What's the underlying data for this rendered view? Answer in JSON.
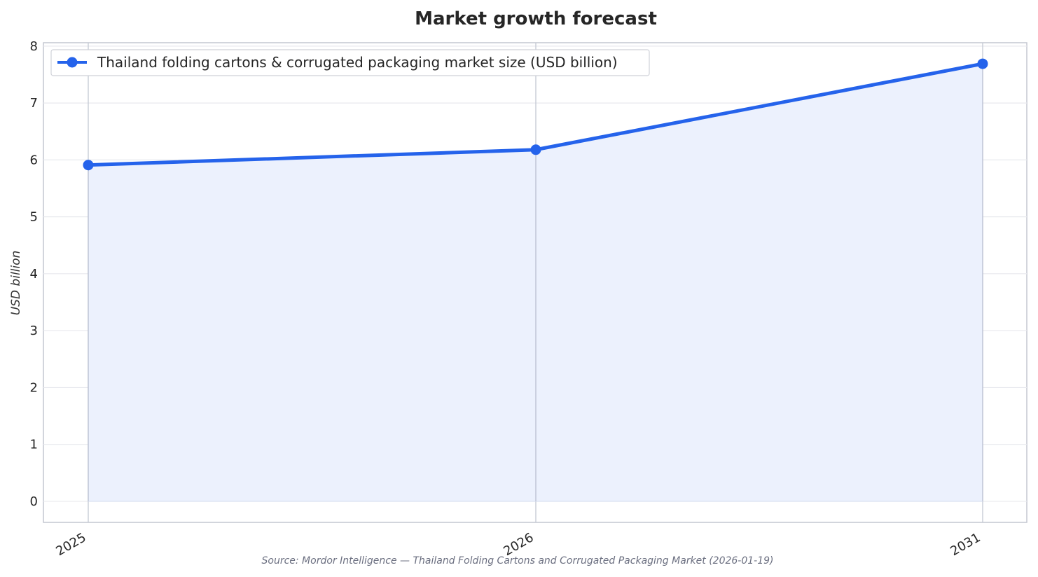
{
  "chart_data": {
    "type": "area",
    "title": "Market growth forecast",
    "ylabel": "USD billion",
    "xlabel": "",
    "categories": [
      "2025",
      "2026",
      "2031"
    ],
    "series": [
      {
        "name": "Thailand folding cartons & corrugated packaging market size (USD billion)",
        "values": [
          5.91,
          6.18,
          7.69
        ],
        "color": "#2563eb",
        "fill_color": "#ecf1fd"
      }
    ],
    "ylim": [
      -0.37,
      8.06
    ],
    "yticks": [
      "0",
      "1",
      "2",
      "3",
      "4",
      "5",
      "6",
      "7",
      "8"
    ],
    "grid": true,
    "legend": "top-left",
    "source": "Source: Mordor Intelligence — Thailand Folding Cartons and Corrugated Packaging Market (2026-01-19)"
  }
}
